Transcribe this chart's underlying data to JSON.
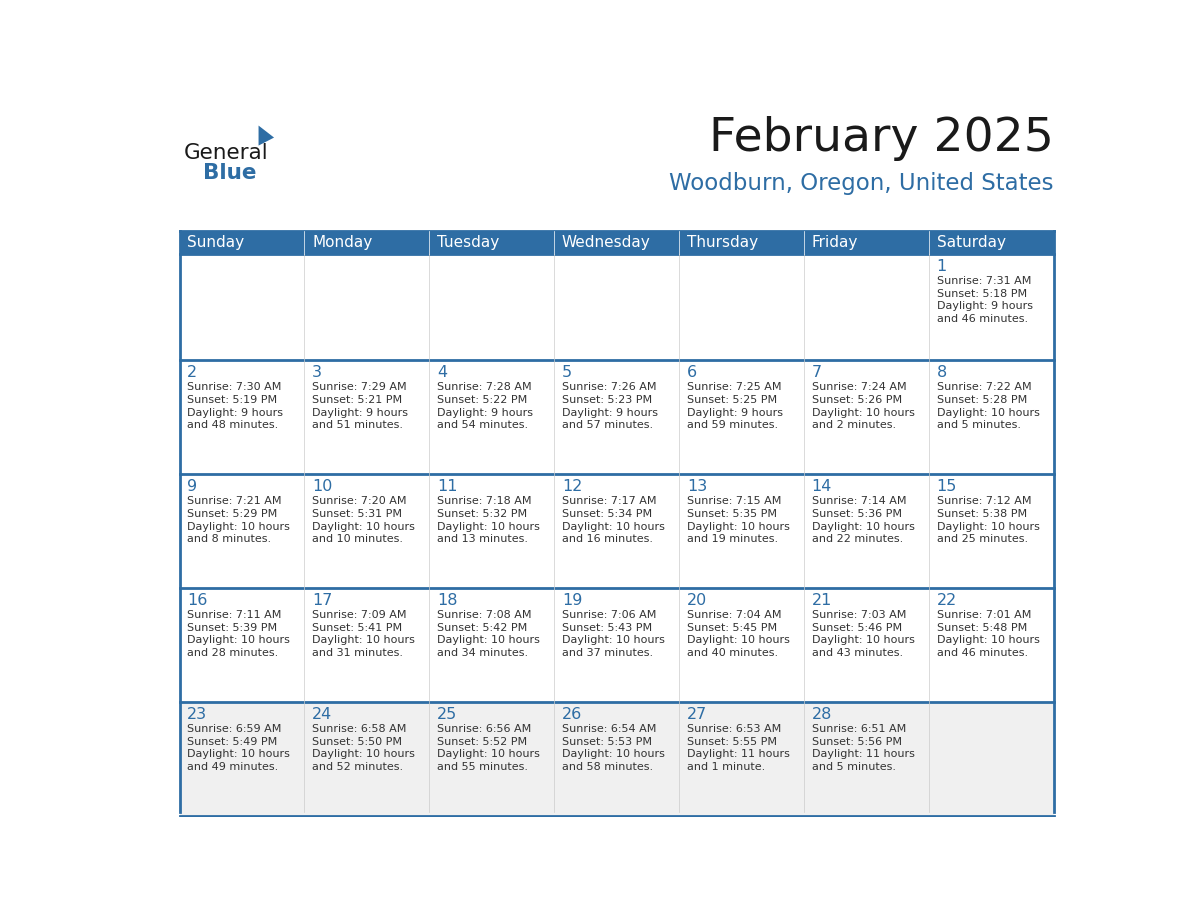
{
  "title": "February 2025",
  "subtitle": "Woodburn, Oregon, United States",
  "header_bg": "#2E6DA4",
  "header_text_color": "#FFFFFF",
  "cell_bg_white": "#FFFFFF",
  "cell_bg_gray": "#F0F0F0",
  "border_color": "#2E6DA4",
  "row_divider_color": "#2E6DA4",
  "title_color": "#1a1a1a",
  "subtitle_color": "#2E6DA4",
  "day_number_color": "#2E6DA4",
  "cell_text_color": "#333333",
  "days_of_week": [
    "Sunday",
    "Monday",
    "Tuesday",
    "Wednesday",
    "Thursday",
    "Friday",
    "Saturday"
  ],
  "calendar_data": [
    [
      null,
      null,
      null,
      null,
      null,
      null,
      {
        "day": 1,
        "sunrise": "7:31 AM",
        "sunset": "5:18 PM",
        "daylight": "9 hours\nand 46 minutes."
      }
    ],
    [
      {
        "day": 2,
        "sunrise": "7:30 AM",
        "sunset": "5:19 PM",
        "daylight": "9 hours\nand 48 minutes."
      },
      {
        "day": 3,
        "sunrise": "7:29 AM",
        "sunset": "5:21 PM",
        "daylight": "9 hours\nand 51 minutes."
      },
      {
        "day": 4,
        "sunrise": "7:28 AM",
        "sunset": "5:22 PM",
        "daylight": "9 hours\nand 54 minutes."
      },
      {
        "day": 5,
        "sunrise": "7:26 AM",
        "sunset": "5:23 PM",
        "daylight": "9 hours\nand 57 minutes."
      },
      {
        "day": 6,
        "sunrise": "7:25 AM",
        "sunset": "5:25 PM",
        "daylight": "9 hours\nand 59 minutes."
      },
      {
        "day": 7,
        "sunrise": "7:24 AM",
        "sunset": "5:26 PM",
        "daylight": "10 hours\nand 2 minutes."
      },
      {
        "day": 8,
        "sunrise": "7:22 AM",
        "sunset": "5:28 PM",
        "daylight": "10 hours\nand 5 minutes."
      }
    ],
    [
      {
        "day": 9,
        "sunrise": "7:21 AM",
        "sunset": "5:29 PM",
        "daylight": "10 hours\nand 8 minutes."
      },
      {
        "day": 10,
        "sunrise": "7:20 AM",
        "sunset": "5:31 PM",
        "daylight": "10 hours\nand 10 minutes."
      },
      {
        "day": 11,
        "sunrise": "7:18 AM",
        "sunset": "5:32 PM",
        "daylight": "10 hours\nand 13 minutes."
      },
      {
        "day": 12,
        "sunrise": "7:17 AM",
        "sunset": "5:34 PM",
        "daylight": "10 hours\nand 16 minutes."
      },
      {
        "day": 13,
        "sunrise": "7:15 AM",
        "sunset": "5:35 PM",
        "daylight": "10 hours\nand 19 minutes."
      },
      {
        "day": 14,
        "sunrise": "7:14 AM",
        "sunset": "5:36 PM",
        "daylight": "10 hours\nand 22 minutes."
      },
      {
        "day": 15,
        "sunrise": "7:12 AM",
        "sunset": "5:38 PM",
        "daylight": "10 hours\nand 25 minutes."
      }
    ],
    [
      {
        "day": 16,
        "sunrise": "7:11 AM",
        "sunset": "5:39 PM",
        "daylight": "10 hours\nand 28 minutes."
      },
      {
        "day": 17,
        "sunrise": "7:09 AM",
        "sunset": "5:41 PM",
        "daylight": "10 hours\nand 31 minutes."
      },
      {
        "day": 18,
        "sunrise": "7:08 AM",
        "sunset": "5:42 PM",
        "daylight": "10 hours\nand 34 minutes."
      },
      {
        "day": 19,
        "sunrise": "7:06 AM",
        "sunset": "5:43 PM",
        "daylight": "10 hours\nand 37 minutes."
      },
      {
        "day": 20,
        "sunrise": "7:04 AM",
        "sunset": "5:45 PM",
        "daylight": "10 hours\nand 40 minutes."
      },
      {
        "day": 21,
        "sunrise": "7:03 AM",
        "sunset": "5:46 PM",
        "daylight": "10 hours\nand 43 minutes."
      },
      {
        "day": 22,
        "sunrise": "7:01 AM",
        "sunset": "5:48 PM",
        "daylight": "10 hours\nand 46 minutes."
      }
    ],
    [
      {
        "day": 23,
        "sunrise": "6:59 AM",
        "sunset": "5:49 PM",
        "daylight": "10 hours\nand 49 minutes."
      },
      {
        "day": 24,
        "sunrise": "6:58 AM",
        "sunset": "5:50 PM",
        "daylight": "10 hours\nand 52 minutes."
      },
      {
        "day": 25,
        "sunrise": "6:56 AM",
        "sunset": "5:52 PM",
        "daylight": "10 hours\nand 55 minutes."
      },
      {
        "day": 26,
        "sunrise": "6:54 AM",
        "sunset": "5:53 PM",
        "daylight": "10 hours\nand 58 minutes."
      },
      {
        "day": 27,
        "sunrise": "6:53 AM",
        "sunset": "5:55 PM",
        "daylight": "11 hours\nand 1 minute."
      },
      {
        "day": 28,
        "sunrise": "6:51 AM",
        "sunset": "5:56 PM",
        "daylight": "11 hours\nand 5 minutes."
      },
      null
    ]
  ],
  "logo_text_general": "General",
  "logo_text_blue": "Blue",
  "logo_color_general": "#1a1a1a",
  "logo_color_blue": "#2E6DA4",
  "logo_triangle_color": "#2E6DA4",
  "fig_width": 11.88,
  "fig_height": 9.18,
  "dpi": 100
}
